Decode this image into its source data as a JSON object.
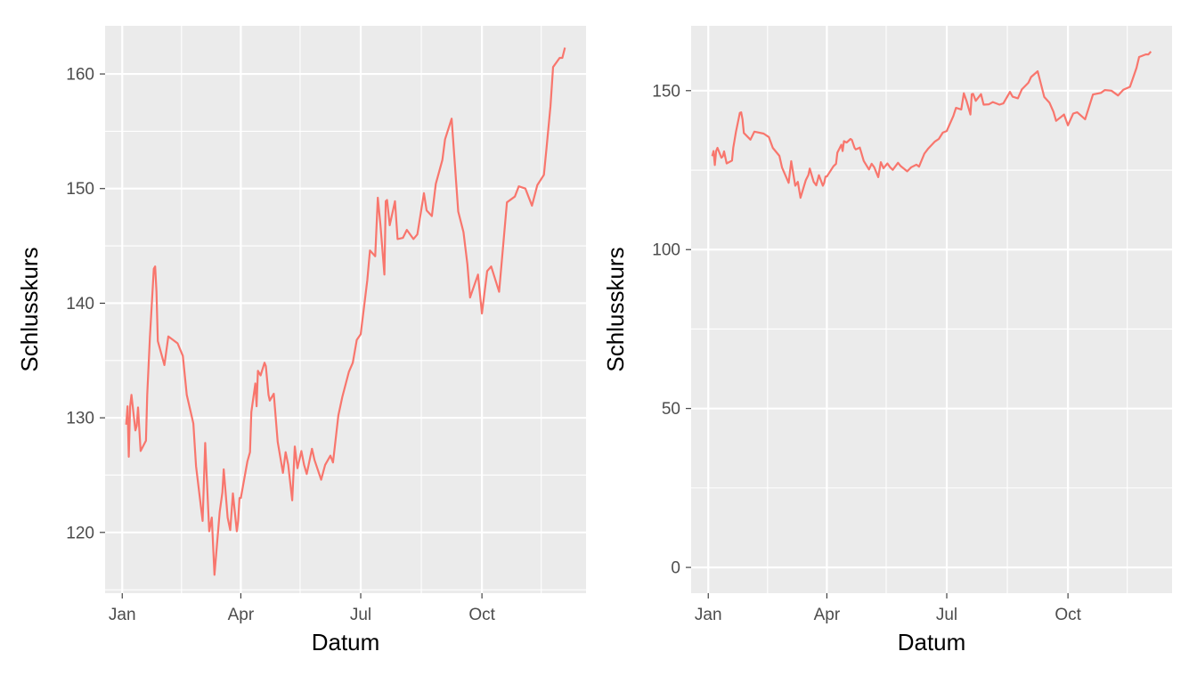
{
  "chart_data": [
    {
      "type": "line",
      "xlabel": "Datum",
      "ylabel": "Schlusskurs",
      "x_tick_labels": [
        "Jan",
        "Apr",
        "Jul",
        "Oct"
      ],
      "x_ticks": [
        "2021-01-01",
        "2021-04-01",
        "2021-07-01",
        "2021-10-01"
      ],
      "x_minor_ticks": [
        "2021-02-15",
        "2021-05-16",
        "2021-08-16",
        "2021-11-15"
      ],
      "xlim": [
        "2020-12-19",
        "2021-12-19"
      ],
      "y_ticks": [
        120,
        130,
        140,
        150,
        160
      ],
      "ylim": [
        114.7,
        164.2
      ],
      "grid": true,
      "line_color": "#f8766d",
      "panel_color": "#ebebeb",
      "series": [
        {
          "x": [
            "2021-01-04",
            "2021-01-05",
            "2021-01-06",
            "2021-01-07",
            "2021-01-08",
            "2021-01-11",
            "2021-01-12",
            "2021-01-13",
            "2021-01-14",
            "2021-01-15",
            "2021-01-19",
            "2021-01-20",
            "2021-01-22",
            "2021-01-25",
            "2021-01-26",
            "2021-01-27",
            "2021-01-28",
            "2021-02-02",
            "2021-02-05",
            "2021-02-12",
            "2021-02-16",
            "2021-02-19",
            "2021-02-24",
            "2021-02-26",
            "2021-03-03",
            "2021-03-05",
            "2021-03-08",
            "2021-03-10",
            "2021-03-12",
            "2021-03-16",
            "2021-03-18",
            "2021-03-19",
            "2021-03-22",
            "2021-03-24",
            "2021-03-26",
            "2021-03-29",
            "2021-03-30",
            "2021-03-31",
            "2021-04-01",
            "2021-04-06",
            "2021-04-08",
            "2021-04-09",
            "2021-04-12",
            "2021-04-13",
            "2021-04-14",
            "2021-04-16",
            "2021-04-19",
            "2021-04-20",
            "2021-04-22",
            "2021-04-23",
            "2021-04-26",
            "2021-04-29",
            "2021-05-03",
            "2021-05-05",
            "2021-05-07",
            "2021-05-10",
            "2021-05-12",
            "2021-05-14",
            "2021-05-17",
            "2021-05-19",
            "2021-05-21",
            "2021-05-25",
            "2021-05-27",
            "2021-06-01",
            "2021-06-04",
            "2021-06-08",
            "2021-06-10",
            "2021-06-14",
            "2021-06-17",
            "2021-06-22",
            "2021-06-25",
            "2021-06-28",
            "2021-07-01",
            "2021-07-06",
            "2021-07-08",
            "2021-07-12",
            "2021-07-14",
            "2021-07-16",
            "2021-07-19",
            "2021-07-20",
            "2021-07-21",
            "2021-07-23",
            "2021-07-27",
            "2021-07-29",
            "2021-08-02",
            "2021-08-05",
            "2021-08-10",
            "2021-08-13",
            "2021-08-18",
            "2021-08-20",
            "2021-08-24",
            "2021-08-27",
            "2021-09-01",
            "2021-09-03",
            "2021-09-08",
            "2021-09-13",
            "2021-09-17",
            "2021-09-20",
            "2021-09-22",
            "2021-09-28",
            "2021-10-01",
            "2021-10-05",
            "2021-10-08",
            "2021-10-14",
            "2021-10-20",
            "2021-10-26",
            "2021-10-29",
            "2021-11-03",
            "2021-11-08",
            "2021-11-12",
            "2021-11-17",
            "2021-11-19",
            "2021-11-22",
            "2021-11-24",
            "2021-11-29",
            "2021-12-01",
            "2021-12-03"
          ],
          "values": [
            129.4,
            131.0,
            126.6,
            131.0,
            132.0,
            128.9,
            129.3,
            130.9,
            128.9,
            127.1,
            128.0,
            132.0,
            137.0,
            143.0,
            143.2,
            141.0,
            136.7,
            134.6,
            137.1,
            136.5,
            135.4,
            132.0,
            129.5,
            125.8,
            121.0,
            127.8,
            120.1,
            121.3,
            116.3,
            121.8,
            123.5,
            125.5,
            121.3,
            120.2,
            123.4,
            120.1,
            121.0,
            123.0,
            123.0,
            126.2,
            127.0,
            130.5,
            133.0,
            131.0,
            134.1,
            133.7,
            134.8,
            134.5,
            132.0,
            131.5,
            132.1,
            127.9,
            125.2,
            127.0,
            125.9,
            122.8,
            127.5,
            125.6,
            127.1,
            125.9,
            125.1,
            127.3,
            126.3,
            124.6,
            125.9,
            126.7,
            126.1,
            130.2,
            131.8,
            134.0,
            134.8,
            136.8,
            137.3,
            142.0,
            144.6,
            144.1,
            149.2,
            146.8,
            142.5,
            148.9,
            149.0,
            146.8,
            148.9,
            145.6,
            145.7,
            146.4,
            145.6,
            146.0,
            149.6,
            148.1,
            147.6,
            150.4,
            152.5,
            154.3,
            156.1,
            148.0,
            146.2,
            143.4,
            140.5,
            142.5,
            139.1,
            142.8,
            143.2,
            141.0,
            148.8,
            149.3,
            150.2,
            150.0,
            148.5,
            150.3,
            151.2,
            153.5,
            157.2,
            160.6,
            161.4,
            161.4,
            162.3
          ]
        }
      ]
    },
    {
      "type": "line",
      "xlabel": "Datum",
      "ylabel": "Schlusskurs",
      "x_tick_labels": [
        "Jan",
        "Apr",
        "Jul",
        "Oct"
      ],
      "x_ticks": [
        "2021-01-01",
        "2021-04-01",
        "2021-07-01",
        "2021-10-01"
      ],
      "x_minor_ticks": [
        "2021-02-15",
        "2021-05-16",
        "2021-08-16",
        "2021-11-15"
      ],
      "xlim": [
        "2020-12-19",
        "2021-12-19"
      ],
      "y_ticks": [
        0,
        50,
        100,
        150
      ],
      "ylim": [
        -8.1,
        170.4
      ],
      "grid": true,
      "line_color": "#f8766d",
      "panel_color": "#ebebeb",
      "series": [
        {
          "x": [
            "2021-01-04",
            "2021-01-05",
            "2021-01-06",
            "2021-01-07",
            "2021-01-08",
            "2021-01-11",
            "2021-01-12",
            "2021-01-13",
            "2021-01-14",
            "2021-01-15",
            "2021-01-19",
            "2021-01-20",
            "2021-01-22",
            "2021-01-25",
            "2021-01-26",
            "2021-01-27",
            "2021-01-28",
            "2021-02-02",
            "2021-02-05",
            "2021-02-12",
            "2021-02-16",
            "2021-02-19",
            "2021-02-24",
            "2021-02-26",
            "2021-03-03",
            "2021-03-05",
            "2021-03-08",
            "2021-03-10",
            "2021-03-12",
            "2021-03-16",
            "2021-03-18",
            "2021-03-19",
            "2021-03-22",
            "2021-03-24",
            "2021-03-26",
            "2021-03-29",
            "2021-03-30",
            "2021-03-31",
            "2021-04-01",
            "2021-04-06",
            "2021-04-08",
            "2021-04-09",
            "2021-04-12",
            "2021-04-13",
            "2021-04-14",
            "2021-04-16",
            "2021-04-19",
            "2021-04-20",
            "2021-04-22",
            "2021-04-23",
            "2021-04-26",
            "2021-04-29",
            "2021-05-03",
            "2021-05-05",
            "2021-05-07",
            "2021-05-10",
            "2021-05-12",
            "2021-05-14",
            "2021-05-17",
            "2021-05-19",
            "2021-05-21",
            "2021-05-25",
            "2021-05-27",
            "2021-06-01",
            "2021-06-04",
            "2021-06-08",
            "2021-06-10",
            "2021-06-14",
            "2021-06-17",
            "2021-06-22",
            "2021-06-25",
            "2021-06-28",
            "2021-07-01",
            "2021-07-06",
            "2021-07-08",
            "2021-07-12",
            "2021-07-14",
            "2021-07-16",
            "2021-07-19",
            "2021-07-20",
            "2021-07-21",
            "2021-07-23",
            "2021-07-27",
            "2021-07-29",
            "2021-08-02",
            "2021-08-05",
            "2021-08-10",
            "2021-08-13",
            "2021-08-18",
            "2021-08-20",
            "2021-08-24",
            "2021-08-27",
            "2021-09-01",
            "2021-09-03",
            "2021-09-08",
            "2021-09-13",
            "2021-09-17",
            "2021-09-20",
            "2021-09-22",
            "2021-09-28",
            "2021-10-01",
            "2021-10-05",
            "2021-10-08",
            "2021-10-14",
            "2021-10-20",
            "2021-10-26",
            "2021-10-29",
            "2021-11-03",
            "2021-11-08",
            "2021-11-12",
            "2021-11-17",
            "2021-11-19",
            "2021-11-22",
            "2021-11-24",
            "2021-11-29",
            "2021-12-01",
            "2021-12-03"
          ],
          "values": [
            129.4,
            131.0,
            126.6,
            131.0,
            132.0,
            128.9,
            129.3,
            130.9,
            128.9,
            127.1,
            128.0,
            132.0,
            137.0,
            143.0,
            143.2,
            141.0,
            136.7,
            134.6,
            137.1,
            136.5,
            135.4,
            132.0,
            129.5,
            125.8,
            121.0,
            127.8,
            120.1,
            121.3,
            116.3,
            121.8,
            123.5,
            125.5,
            121.3,
            120.2,
            123.4,
            120.1,
            121.0,
            123.0,
            123.0,
            126.2,
            127.0,
            130.5,
            133.0,
            131.0,
            134.1,
            133.7,
            134.8,
            134.5,
            132.0,
            131.5,
            132.1,
            127.9,
            125.2,
            127.0,
            125.9,
            122.8,
            127.5,
            125.6,
            127.1,
            125.9,
            125.1,
            127.3,
            126.3,
            124.6,
            125.9,
            126.7,
            126.1,
            130.2,
            131.8,
            134.0,
            134.8,
            136.8,
            137.3,
            142.0,
            144.6,
            144.1,
            149.2,
            146.8,
            142.5,
            148.9,
            149.0,
            146.8,
            148.9,
            145.6,
            145.7,
            146.4,
            145.6,
            146.0,
            149.6,
            148.1,
            147.6,
            150.4,
            152.5,
            154.3,
            156.1,
            148.0,
            146.2,
            143.4,
            140.5,
            142.5,
            139.1,
            142.8,
            143.2,
            141.0,
            148.8,
            149.3,
            150.2,
            150.0,
            148.5,
            150.3,
            151.2,
            153.5,
            157.2,
            160.6,
            161.4,
            161.4,
            162.3
          ]
        }
      ]
    }
  ]
}
